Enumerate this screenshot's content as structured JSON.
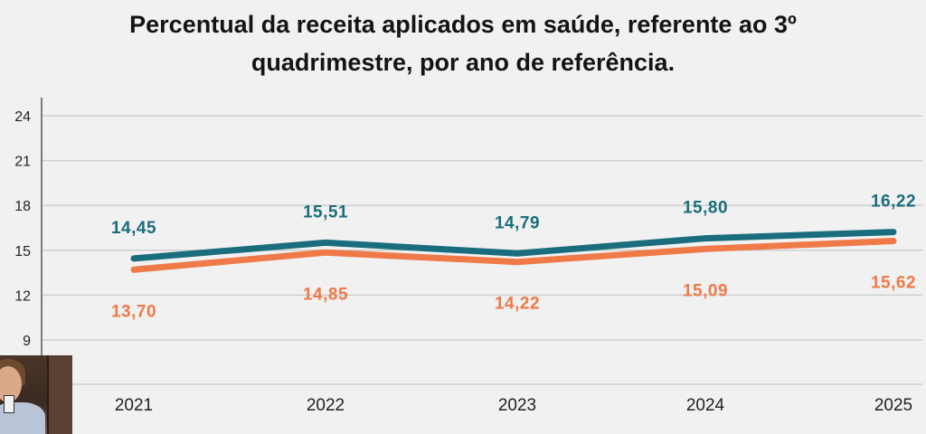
{
  "title": {
    "line1": "Percentual da receita aplicados em saúde, referente ao 3º",
    "line2": "quadrimestre, por ano de referência."
  },
  "chart_data": {
    "type": "line",
    "title": "Percentual da receita aplicados em saúde, referente ao 3º quadrimestre, por ano de referência.",
    "categories": [
      "2021",
      "2022",
      "2023",
      "2024",
      "2025"
    ],
    "y_ticks": [
      "9",
      "12",
      "15",
      "18",
      "21",
      "24"
    ],
    "ylim": [
      9,
      24
    ],
    "grid": true,
    "series": [
      {
        "name": "",
        "color": "#1a6d7d",
        "values": [
          14.45,
          15.51,
          14.79,
          15.8,
          16.22
        ],
        "labels": [
          "14,45",
          "15,51",
          "14,79",
          "15,80",
          "16,22"
        ],
        "label_position": "above"
      },
      {
        "name": "",
        "color": "#ef7a48",
        "values": [
          13.7,
          14.85,
          14.22,
          15.09,
          15.62
        ],
        "labels": [
          "13,70",
          "14,85",
          "14,22",
          "15,09",
          "15,62"
        ],
        "label_position": "below"
      }
    ]
  }
}
